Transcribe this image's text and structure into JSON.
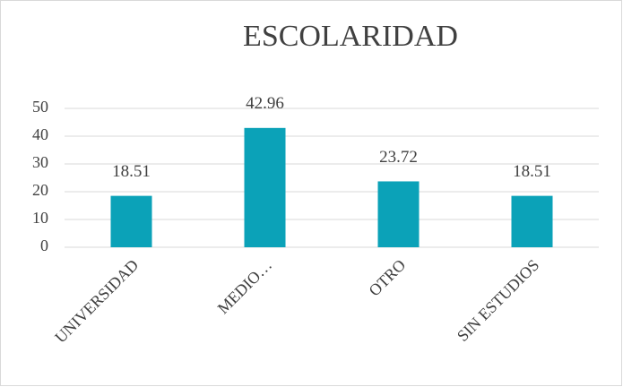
{
  "chart_data": {
    "type": "bar",
    "title": "ESCOLARIDAD",
    "categories": [
      "UNIVERSIDAD",
      "MEDIO…",
      "OTRO",
      "SIN ESTUDIOS"
    ],
    "values": [
      18.51,
      42.96,
      23.72,
      18.51
    ],
    "color": "#0ba2b8",
    "ylim": [
      0,
      50
    ],
    "yticks": [
      0,
      10,
      20,
      30,
      40,
      50
    ],
    "grid": true
  }
}
